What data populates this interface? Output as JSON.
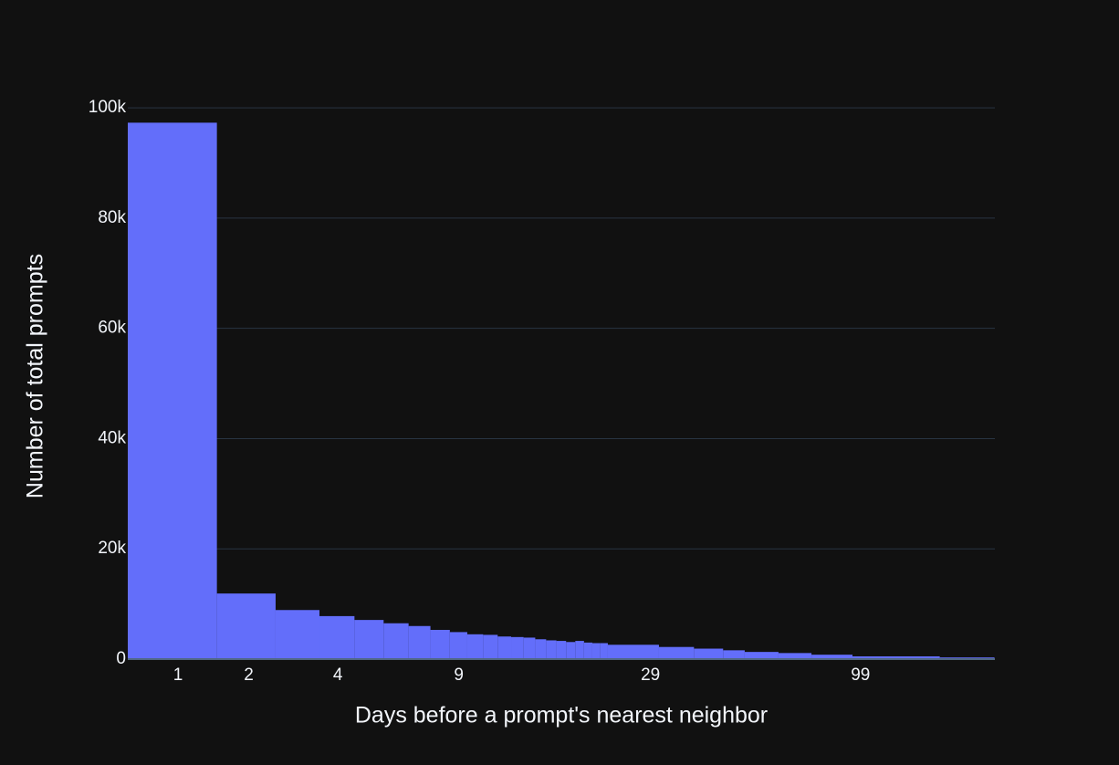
{
  "chart_data": {
    "type": "histogram",
    "x_label": "Days before a prompt's nearest neighbor",
    "y_label": "Number of total prompts",
    "bins": [
      1.5,
      2.5,
      3.5,
      4.5,
      5.5,
      6.5,
      7.5,
      8.5,
      9.5,
      10.5,
      11.5,
      12.5,
      13.5,
      14.5,
      15.5,
      16.5,
      17.5,
      18.5,
      19.5,
      20.5,
      21.5,
      22.5,
      23.5,
      31.5,
      38.5,
      45.5,
      51.5,
      62.5,
      75.5,
      95.5,
      157.5,
      215.5
    ],
    "values": [
      97300,
      11900,
      8900,
      7800,
      7100,
      6500,
      6000,
      5300,
      4900,
      4500,
      4400,
      4100,
      4000,
      3900,
      3600,
      3400,
      3300,
      3100,
      3300,
      3000,
      2900,
      2900,
      2600,
      2200,
      1900,
      1600,
      1300,
      1100,
      800,
      500,
      300
    ],
    "color": "#636efa",
    "xscale": "log",
    "xlim": [
      1.5,
      216
    ],
    "xticks": [
      {
        "value": 2,
        "label": "1"
      },
      {
        "value": 3,
        "label": "2"
      },
      {
        "value": 5,
        "label": "4"
      },
      {
        "value": 10,
        "label": "9"
      },
      {
        "value": 30,
        "label": "29"
      },
      {
        "value": 100,
        "label": "99"
      }
    ],
    "ylim": [
      0,
      102500
    ],
    "yticks": [
      0,
      {
        "value": 20000,
        "label": "20k"
      },
      {
        "value": 40000,
        "label": "40k"
      },
      {
        "value": 60000,
        "label": "60k"
      },
      {
        "value": 80000,
        "label": "80k"
      },
      {
        "value": 100000,
        "label": "100k"
      }
    ],
    "grid": true
  }
}
